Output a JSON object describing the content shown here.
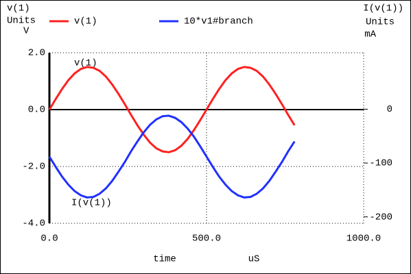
{
  "chart_data": {
    "type": "line",
    "y_title": "v(1)",
    "y_units_label": "Units",
    "y_unit": "V",
    "y2_title": "I(v(1))",
    "y2_units_label": "Units",
    "y2_unit": "mA",
    "x_label": "time",
    "x_unit": "uS",
    "annotations": [
      "v(1)",
      "I(v(1))"
    ],
    "x": [
      0,
      20,
      40,
      60,
      80,
      100,
      120,
      140,
      160,
      180,
      200,
      220,
      240,
      260,
      280,
      300,
      320,
      340,
      360,
      380,
      400,
      420,
      440,
      460,
      480,
      500,
      520,
      540,
      560,
      580,
      600,
      620,
      640,
      660,
      680,
      700,
      720,
      740,
      760,
      780
    ],
    "series": [
      {
        "name": "v(1)",
        "color": "#ff2020",
        "axis": "y",
        "values": [
          0,
          0.37,
          0.72,
          1.03,
          1.27,
          1.43,
          1.5,
          1.47,
          1.36,
          1.16,
          0.88,
          0.55,
          0.19,
          -0.19,
          -0.55,
          -0.88,
          -1.16,
          -1.36,
          -1.47,
          -1.5,
          -1.43,
          -1.27,
          -1.03,
          -0.72,
          -0.37,
          0,
          0.37,
          0.72,
          1.03,
          1.27,
          1.43,
          1.5,
          1.47,
          1.36,
          1.16,
          0.88,
          0.55,
          0.19,
          -0.19,
          -0.55
        ]
      },
      {
        "name": "10*v1#branch",
        "color": "#2030ff",
        "axis": "y2",
        "values": [
          -88,
          -107,
          -125,
          -140,
          -152,
          -160,
          -164,
          -163,
          -157,
          -147,
          -133,
          -116,
          -98,
          -78,
          -60,
          -43,
          -29,
          -19,
          -13,
          -12,
          -16,
          -24,
          -36,
          -51,
          -69,
          -88,
          -107,
          -125,
          -140,
          -152,
          -160,
          -164,
          -163,
          -157,
          -147,
          -133,
          -116,
          -98,
          -78,
          -60
        ]
      }
    ],
    "xlim": [
      0,
      1000
    ],
    "xticks": [
      {
        "value": 0,
        "label": "0.0"
      },
      {
        "value": 500,
        "label": "500.0"
      },
      {
        "value": 1000,
        "label": "1000.0"
      }
    ],
    "ylim": [
      -4,
      2
    ],
    "yticks": [
      {
        "value": 2,
        "label": "2.0"
      },
      {
        "value": 0,
        "label": "0.0"
      },
      {
        "value": -2,
        "label": "-2.0"
      },
      {
        "value": -4,
        "label": "-4.0"
      }
    ],
    "y2lim": [
      -212,
      105
    ],
    "y2ticks": [
      0,
      -100,
      -200
    ],
    "grid": true
  }
}
